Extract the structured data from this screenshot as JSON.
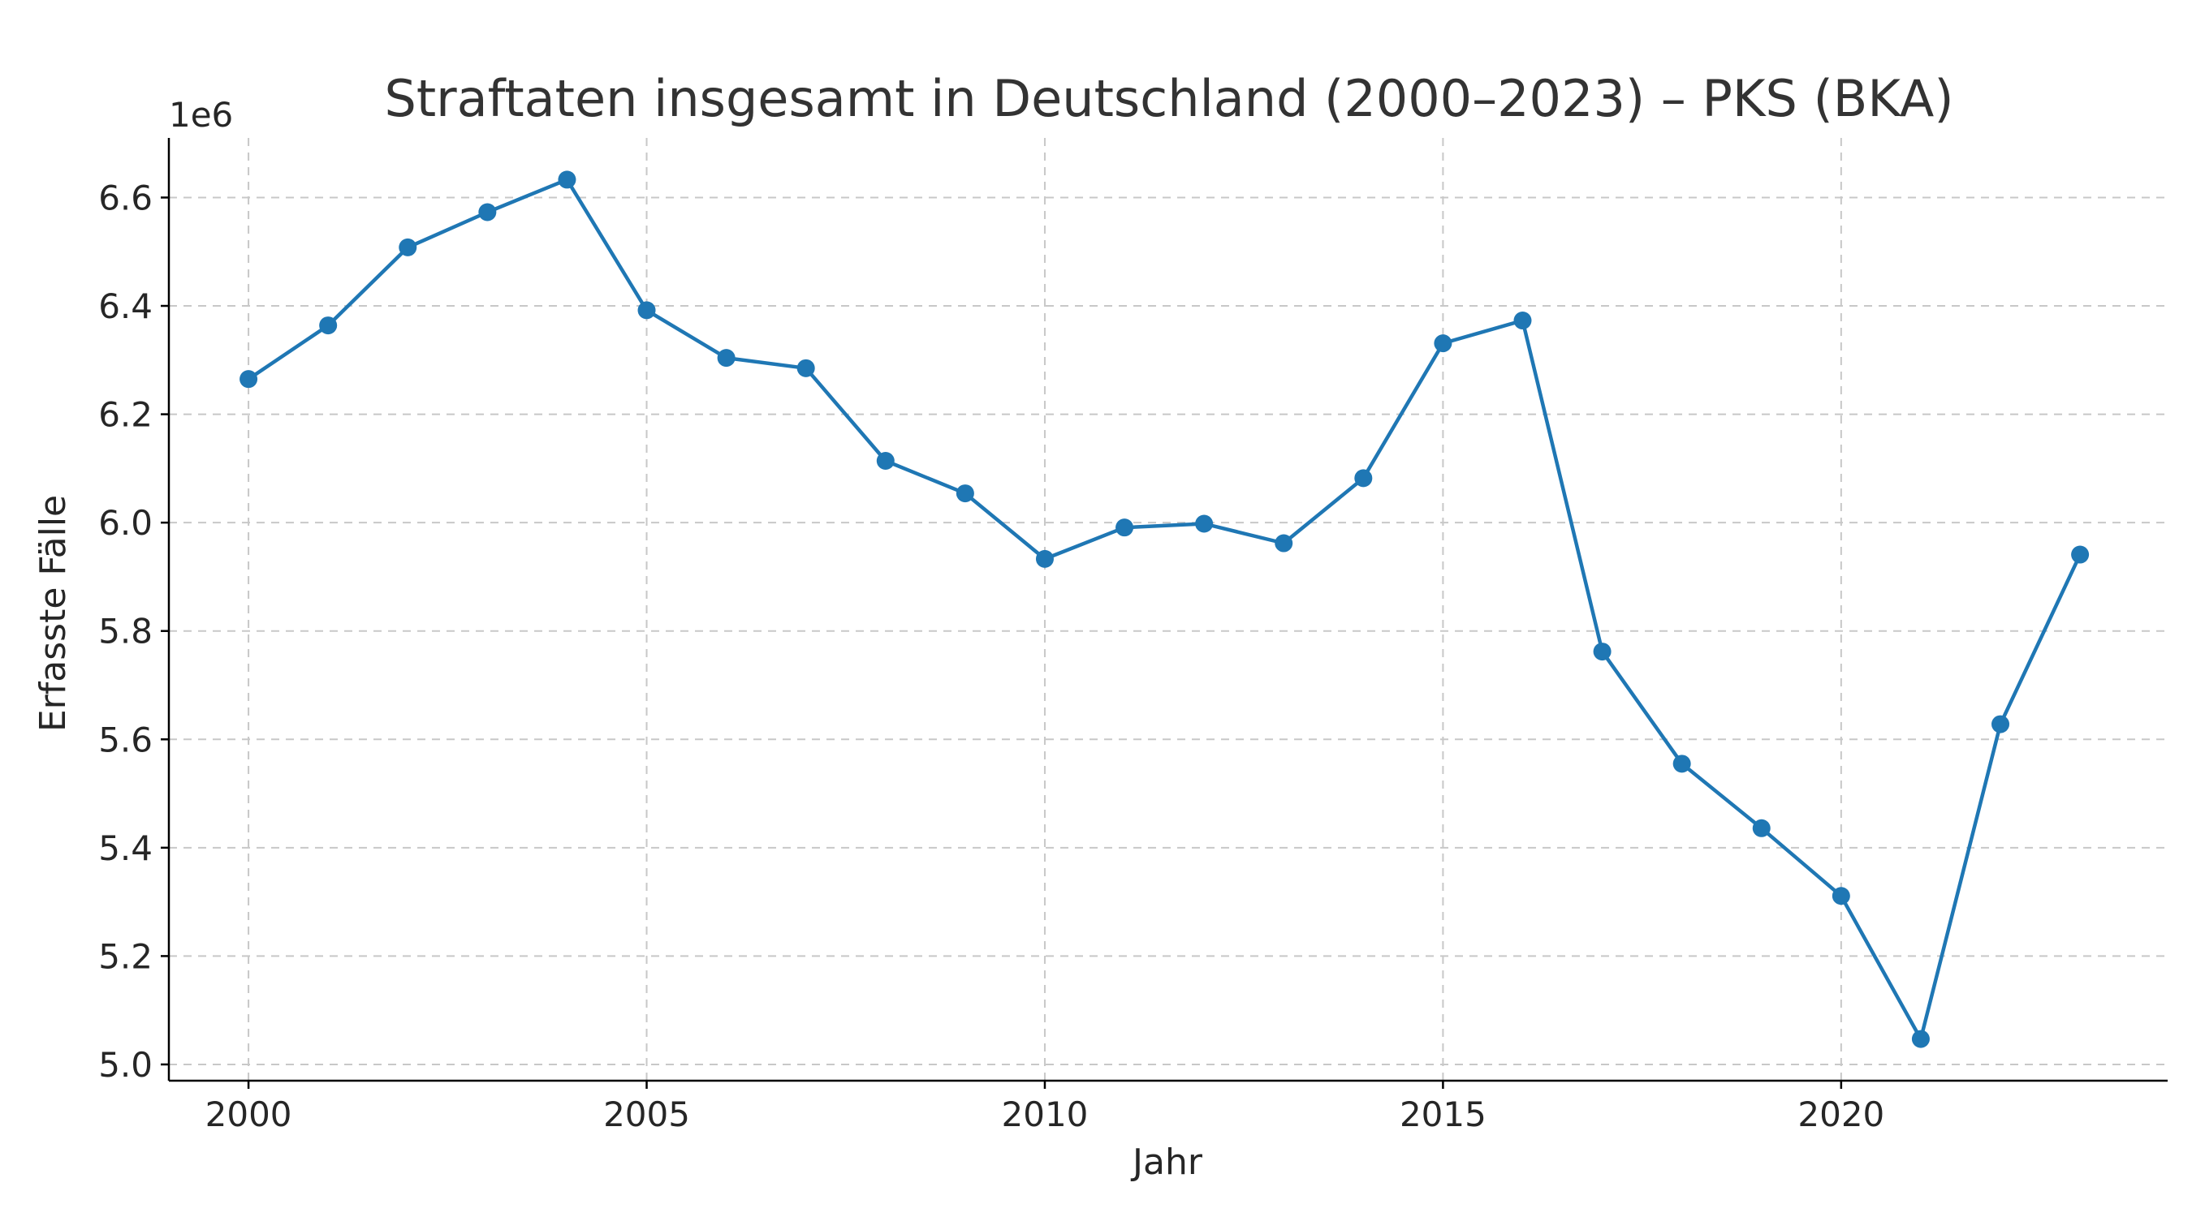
{
  "chart_data": {
    "type": "line",
    "title": "Straftaten insgesamt in Deutschland (2000–2023) – PKS (BKA)",
    "xlabel": "Jahr",
    "ylabel": "Erfasste Fälle",
    "y_offset_label": "1e6",
    "xlim": [
      1999,
      2024.1
    ],
    "ylim": [
      4.97,
      6.71
    ],
    "x_ticks": [
      2000,
      2005,
      2010,
      2015,
      2020
    ],
    "y_ticks": [
      5.0,
      5.2,
      5.4,
      5.6,
      5.8,
      6.0,
      6.2,
      6.4,
      6.6
    ],
    "y_tick_labels": [
      "5.0",
      "5.2",
      "5.4",
      "5.6",
      "5.8",
      "6.0",
      "6.2",
      "6.4",
      "6.6"
    ],
    "grid": true,
    "series": [
      {
        "color": "#1f77b4",
        "x": [
          2000,
          2001,
          2002,
          2003,
          2004,
          2005,
          2006,
          2007,
          2008,
          2009,
          2010,
          2011,
          2012,
          2013,
          2014,
          2015,
          2016,
          2017,
          2018,
          2019,
          2020,
          2021,
          2022,
          2023
        ],
        "y": [
          6.265,
          6.364,
          6.508,
          6.573,
          6.633,
          6.392,
          6.304,
          6.285,
          6.114,
          6.054,
          5.933,
          5.991,
          5.998,
          5.962,
          6.082,
          6.331,
          6.373,
          5.762,
          5.555,
          5.436,
          5.311,
          5.047,
          5.628,
          5.941
        ]
      }
    ]
  }
}
